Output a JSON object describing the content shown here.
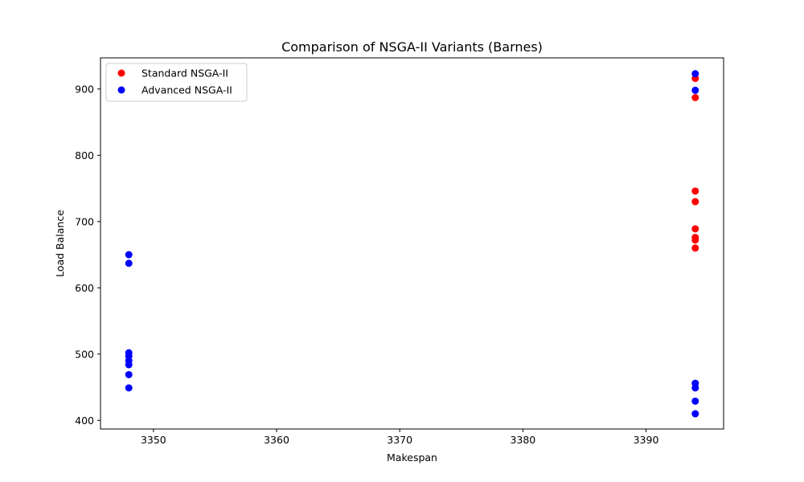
{
  "chart_data": {
    "type": "scatter",
    "title": "Comparison of NSGA-II Variants (Barnes)",
    "xlabel": "Makespan",
    "ylabel": "Load Balance",
    "xlim": [
      3345.7,
      3396.3
    ],
    "ylim": [
      387,
      947
    ],
    "xticks": [
      3350,
      3360,
      3370,
      3380,
      3390
    ],
    "yticks": [
      400,
      500,
      600,
      700,
      800,
      900
    ],
    "grid": false,
    "legend_position": "top-left",
    "series": [
      {
        "name": "Standard NSGA-II",
        "color": "#ff0000",
        "points": [
          [
            3394,
            916
          ],
          [
            3394,
            887
          ],
          [
            3394,
            746
          ],
          [
            3394,
            730
          ],
          [
            3394,
            689
          ],
          [
            3394,
            676
          ],
          [
            3394,
            672
          ],
          [
            3394,
            660
          ]
        ]
      },
      {
        "name": "Advanced NSGA-II",
        "color": "#0000ff",
        "points": [
          [
            3348,
            650
          ],
          [
            3348,
            637
          ],
          [
            3348,
            502
          ],
          [
            3348,
            497
          ],
          [
            3348,
            490
          ],
          [
            3348,
            484
          ],
          [
            3348,
            469
          ],
          [
            3348,
            449
          ],
          [
            3394,
            923
          ],
          [
            3394,
            898
          ],
          [
            3394,
            456
          ],
          [
            3394,
            449
          ],
          [
            3394,
            429
          ],
          [
            3394,
            410
          ]
        ]
      }
    ]
  }
}
